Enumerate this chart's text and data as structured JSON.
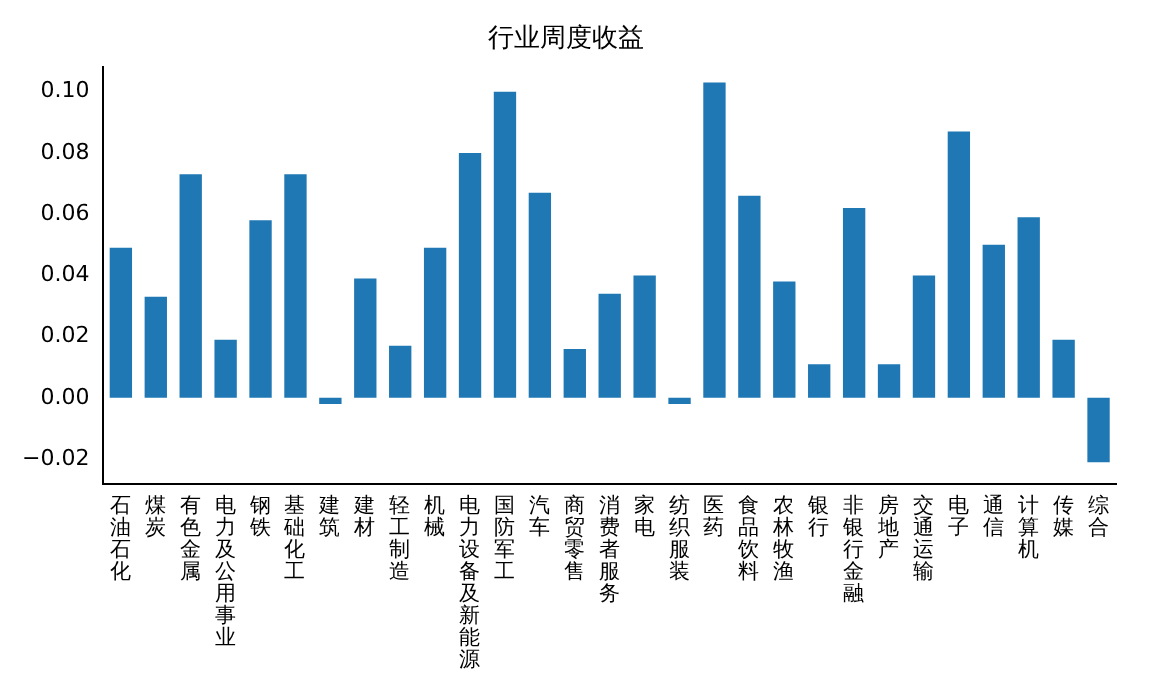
{
  "chart_data": {
    "type": "bar",
    "title": "行业周度收益",
    "categories": [
      "石油石化",
      "煤炭",
      "有色金属",
      "电力及公用事业",
      "钢铁",
      "基础化工",
      "建筑",
      "建材",
      "轻工制造",
      "机械",
      "电力设备及新能源",
      "国防军工",
      "汽车",
      "商贸零售",
      "消费者服务",
      "家电",
      "纺织服装",
      "医药",
      "食品饮料",
      "农林牧渔",
      "银行",
      "非银行金融",
      "房地产",
      "交通运输",
      "电子",
      "通信",
      "计算机",
      "传媒",
      "综合"
    ],
    "values": [
      0.049,
      0.033,
      0.073,
      0.019,
      0.058,
      0.073,
      -0.002,
      0.039,
      0.017,
      0.049,
      0.08,
      0.1,
      0.067,
      0.016,
      0.034,
      0.04,
      -0.002,
      0.103,
      0.066,
      0.038,
      0.011,
      0.062,
      0.011,
      0.04,
      0.087,
      0.05,
      0.059,
      0.019,
      -0.021
    ],
    "color": "#1f77b4",
    "ylim": [
      -0.028,
      0.108
    ],
    "yticks": [
      {
        "value": -0.02,
        "label": "−0.02"
      },
      {
        "value": 0,
        "label": "0.00"
      },
      {
        "value": 0.02,
        "label": "0.02"
      },
      {
        "value": 0.04,
        "label": "0.04"
      },
      {
        "value": 0.06,
        "label": "0.06"
      },
      {
        "value": 0.08,
        "label": "0.08"
      },
      {
        "value": 0.1,
        "label": "0.10"
      }
    ],
    "grid": false,
    "legend": false
  }
}
